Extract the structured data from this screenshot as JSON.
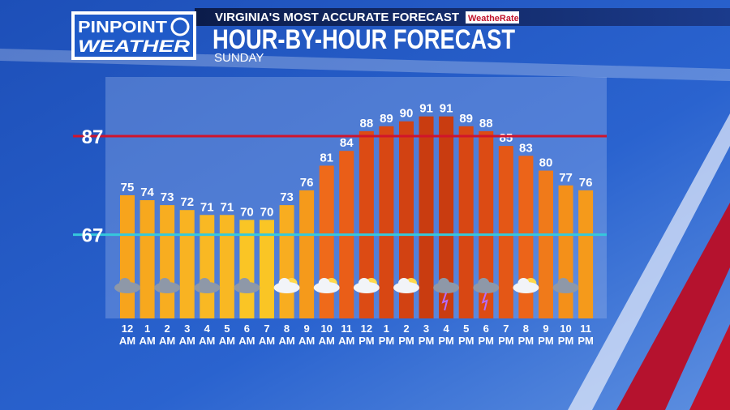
{
  "header": {
    "logo_top": "PINPOINT",
    "logo_bottom": "WEATHER",
    "tagline": "VIRGINIA'S MOST ACCURATE FORECAST",
    "badge": "WeatheRate"
  },
  "chart_data": {
    "type": "bar",
    "title": "HOUR-BY-HOUR FORECAST",
    "subtitle": "SUNDAY",
    "categories": [
      "12 AM",
      "1 AM",
      "2 AM",
      "3 AM",
      "4 AM",
      "5 AM",
      "6 AM",
      "7 AM",
      "8 AM",
      "9 AM",
      "10 AM",
      "11 AM",
      "12 PM",
      "1 PM",
      "2 PM",
      "3 PM",
      "4 PM",
      "5 PM",
      "6 PM",
      "7 PM",
      "8 PM",
      "9 PM",
      "10 PM",
      "11 PM"
    ],
    "values": [
      75,
      74,
      73,
      72,
      71,
      71,
      70,
      70,
      73,
      76,
      81,
      84,
      88,
      89,
      90,
      91,
      91,
      89,
      88,
      85,
      83,
      80,
      77,
      76
    ],
    "colors": [
      "#f7a41c",
      "#f7a81e",
      "#f8ad20",
      "#f9b322",
      "#f9b823",
      "#f9b823",
      "#fac525",
      "#fac525",
      "#f8ad20",
      "#f59a1b",
      "#ef6a1a",
      "#ea5e18",
      "#dc4b14",
      "#d84713",
      "#d24212",
      "#c93c10",
      "#c93c10",
      "#d84713",
      "#dc4b14",
      "#e45716",
      "#ec6419",
      "#f07a1a",
      "#f49019",
      "#f59a1b"
    ],
    "ylim": [
      50,
      99
    ],
    "reference_lines": [
      {
        "value": 87,
        "color": "#d0142c"
      },
      {
        "value": 67,
        "color": "#35c8dc"
      }
    ]
  }
}
